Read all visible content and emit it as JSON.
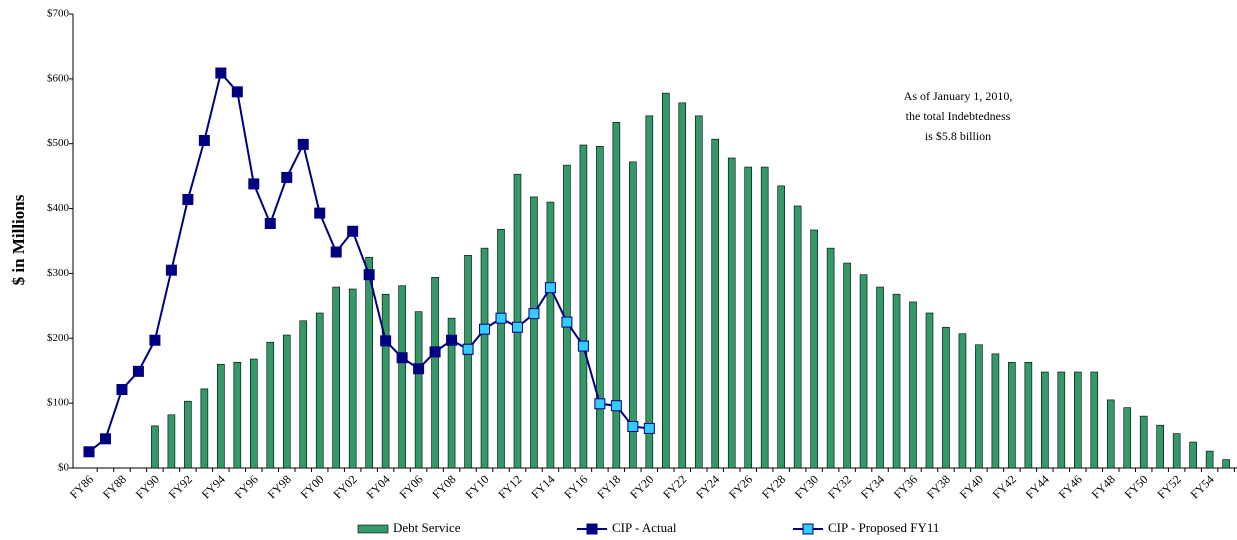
{
  "chart_data": {
    "type": "bar",
    "y_label": "$ in Millions",
    "annotation": [
      "As of January 1, 2010,",
      "the total Indebtedness",
      "is $5.8 billion"
    ],
    "categories": [
      "FY86",
      null,
      "FY88",
      null,
      "FY90",
      null,
      "FY92",
      null,
      "FY94",
      null,
      "FY96",
      null,
      "FY98",
      null,
      "FY00",
      null,
      "FY02",
      null,
      "FY04",
      null,
      "FY06",
      null,
      "FY08",
      null,
      "FY10",
      null,
      "FY12",
      null,
      "FY14",
      null,
      "FY16",
      null,
      "FY18",
      null,
      "FY20",
      null,
      "FY22",
      null,
      "FY24",
      null,
      "FY26",
      null,
      "FY28",
      null,
      "FY30",
      null,
      "FY32",
      null,
      "FY34",
      null,
      "FY36",
      null,
      "FY38",
      null,
      "FY40",
      null,
      "FY42",
      null,
      "FY44",
      null,
      "FY46",
      null,
      "FY48",
      null,
      "FY50",
      null,
      "FY52",
      null,
      "FY54",
      null
    ],
    "series": [
      {
        "name": "Debt Service",
        "type": "bar",
        "color": "#339966",
        "values": [
          null,
          null,
          null,
          null,
          65,
          82,
          103,
          122,
          160,
          163,
          168,
          194,
          205,
          227,
          239,
          279,
          276,
          325,
          268,
          281,
          241,
          294,
          231,
          328,
          339,
          368,
          453,
          418,
          410,
          467,
          498,
          496,
          533,
          472,
          543,
          578,
          563,
          543,
          507,
          478,
          464,
          464,
          435,
          404,
          367,
          339,
          316,
          298,
          279,
          268,
          256,
          239,
          217,
          207,
          190,
          176,
          163,
          163,
          148,
          148,
          148,
          148,
          105,
          93,
          80,
          66,
          53,
          40,
          26,
          13
        ]
      },
      {
        "name": "CIP - Actual",
        "type": "line",
        "color": "#000080",
        "values": [
          25,
          45,
          121,
          149,
          197,
          305,
          414,
          505,
          609,
          580,
          438,
          377,
          448,
          499,
          393,
          333,
          365,
          298,
          196,
          170,
          153,
          179,
          197,
          183,
          null,
          null,
          null,
          null,
          null,
          null,
          null,
          null,
          null,
          null,
          null,
          null,
          null,
          null,
          null,
          null,
          null,
          null,
          null,
          null,
          null,
          null,
          null,
          null,
          null,
          null,
          null,
          null,
          null,
          null,
          null,
          null,
          null,
          null,
          null,
          null,
          null,
          null,
          null,
          null,
          null,
          null,
          null,
          null,
          null,
          null
        ]
      },
      {
        "name": "CIP - Proposed FY11",
        "type": "line",
        "color": "#33ccff",
        "values": [
          null,
          null,
          null,
          null,
          null,
          null,
          null,
          null,
          null,
          null,
          null,
          null,
          null,
          null,
          null,
          null,
          null,
          null,
          null,
          null,
          null,
          null,
          null,
          183,
          214,
          231,
          217,
          238,
          278,
          225,
          188,
          99,
          96,
          64,
          61,
          null,
          null,
          null,
          null,
          null,
          null,
          null,
          null,
          null,
          null,
          null,
          null,
          null,
          null,
          null,
          null,
          null,
          null,
          null,
          null,
          null,
          null,
          null,
          null,
          null,
          null,
          null,
          null,
          null,
          null,
          null,
          null,
          null,
          null,
          null
        ]
      }
    ],
    "ylim": [
      0,
      700
    ],
    "yticks": [
      {
        "value": 0,
        "label": "$0"
      },
      {
        "value": 100,
        "label": "$100"
      },
      {
        "value": 200,
        "label": "$200"
      },
      {
        "value": 300,
        "label": "$300"
      },
      {
        "value": 400,
        "label": "$400"
      },
      {
        "value": 500,
        "label": "$500"
      },
      {
        "value": 600,
        "label": "$600"
      },
      {
        "value": 700,
        "label": "$700"
      }
    ],
    "legend": "bottom"
  }
}
